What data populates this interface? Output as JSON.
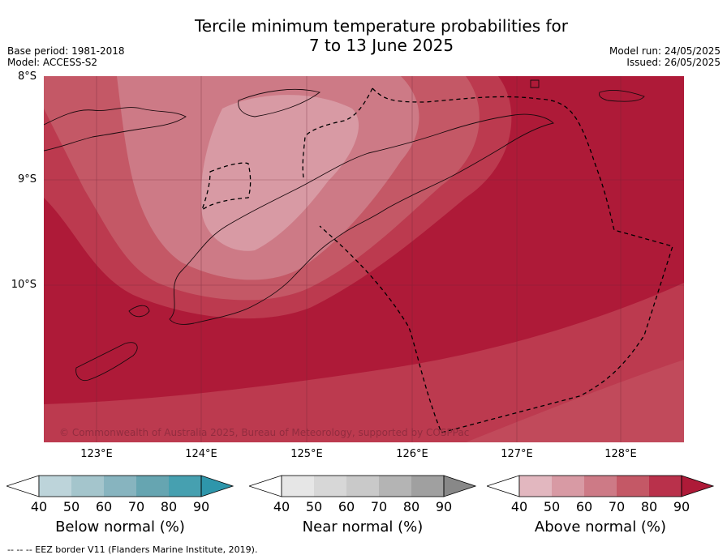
{
  "title_line1": "Tercile minimum temperature probabilities for",
  "title_line2": "7 to 13 June 2025",
  "base_period": "Base period: 1981-2018",
  "model": "Model: ACCESS-S2",
  "model_run": "Model run: 24/05/2025",
  "issued": "Issued: 26/05/2025",
  "lat_labels": [
    "8°S",
    "9°S",
    "10°S"
  ],
  "lon_labels": [
    "123°E",
    "124°E",
    "125°E",
    "126°E",
    "127°E",
    "128°E"
  ],
  "attribution": "© Commonwealth of Australia 2025, Bureau of Meteorology, supported by COSPPac",
  "colorbars": [
    {
      "label": "Below normal (%)",
      "ticks": [
        "40",
        "50",
        "60",
        "70",
        "80",
        "90"
      ],
      "colors": [
        "#bdd4da",
        "#a4c5cc",
        "#87b4bf",
        "#66a5b1",
        "#46a0b0",
        "#2e96ab"
      ]
    },
    {
      "label": "Near normal (%)",
      "ticks": [
        "40",
        "50",
        "60",
        "70",
        "80",
        "90"
      ],
      "colors": [
        "#e6e6e6",
        "#d7d7d7",
        "#c9c9c9",
        "#b4b4b4",
        "#a0a0a0",
        "#888888"
      ]
    },
    {
      "label": "Above normal (%)",
      "ticks": [
        "40",
        "50",
        "60",
        "70",
        "80",
        "90"
      ],
      "colors": [
        "#e2b7bf",
        "#d89aa4",
        "#cd7a86",
        "#c45866",
        "#b9314b",
        "#ae1a38"
      ]
    }
  ],
  "footnote": "--  --  -- EEZ border V11 (Flanders Marine Institute, 2019)."
}
